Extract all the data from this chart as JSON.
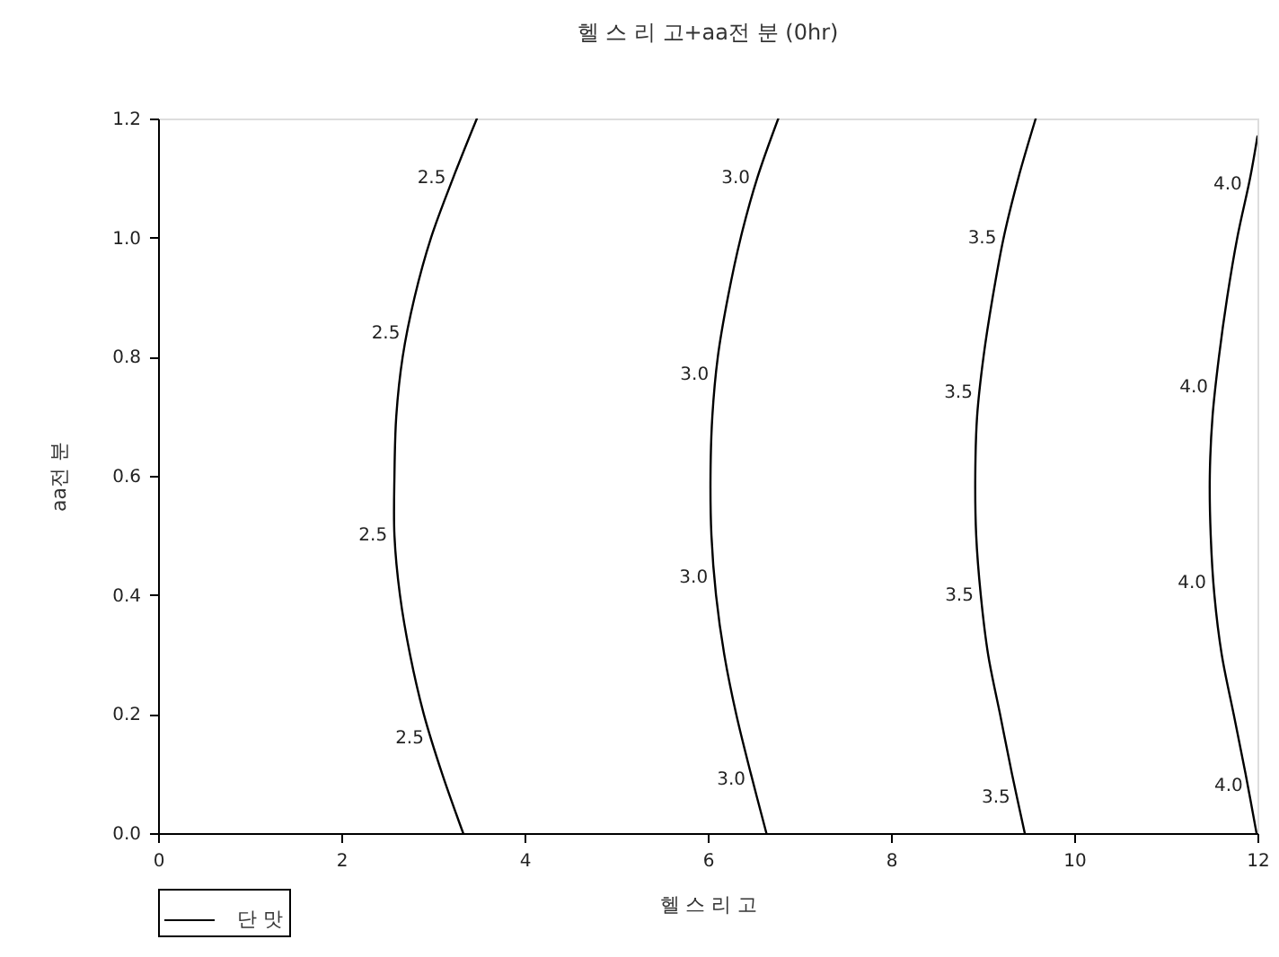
{
  "chart_data": {
    "type": "line",
    "title": "헬 스 리 고+aa전 분 (0hr)",
    "xlabel": "헬 스 리 고",
    "ylabel": "aa전 분",
    "xlim": [
      0,
      12
    ],
    "xticks": [
      0,
      2,
      4,
      6,
      8,
      10,
      12
    ],
    "ylim": [
      0,
      1.2
    ],
    "yticks": [
      {
        "value": 0,
        "label": "0.0"
      },
      0.2,
      0.4,
      0.6,
      0.8,
      {
        "value": 1,
        "label": "1.0"
      },
      1.2
    ],
    "series": [
      {
        "name": "단 맛",
        "color": "#000000",
        "x": [
          3.33,
          3.1,
          2.9,
          2.75,
          2.64,
          2.58,
          2.58,
          2.6,
          2.67,
          2.8,
          2.98,
          3.22,
          3.48
        ],
        "values": [
          0,
          0.1,
          0.2,
          0.3,
          0.4,
          0.5,
          0.6,
          0.7,
          0.8,
          0.9,
          1.0,
          1.1,
          1.2
        ]
      },
      {
        "color": "#000000",
        "x": [
          6.64,
          6.47,
          6.31,
          6.18,
          6.09,
          6.04,
          6.03,
          6.05,
          6.11,
          6.22,
          6.36,
          6.54,
          6.77
        ],
        "values": [
          0,
          0.1,
          0.2,
          0.3,
          0.4,
          0.5,
          0.6,
          0.7,
          0.8,
          0.9,
          1.0,
          1.1,
          1.2
        ]
      },
      {
        "color": "#000000",
        "x": [
          9.46,
          9.32,
          9.19,
          9.06,
          8.98,
          8.93,
          8.92,
          8.94,
          9.01,
          9.11,
          9.23,
          9.39,
          9.58
        ],
        "values": [
          0,
          0.1,
          0.2,
          0.3,
          0.4,
          0.5,
          0.6,
          0.7,
          0.8,
          0.9,
          1.0,
          1.1,
          1.2
        ]
      },
      {
        "color": "#000000",
        "x": [
          11.99,
          11.87,
          11.74,
          11.61,
          11.53,
          11.49,
          11.48,
          11.51,
          11.58,
          11.67,
          11.78,
          11.92,
          12.0
        ],
        "values": [
          0,
          0.1,
          0.2,
          0.3,
          0.4,
          0.5,
          0.6,
          0.7,
          0.8,
          0.9,
          1.0,
          1.1,
          1.17
        ]
      }
    ],
    "annotations": [
      {
        "text": "2.5",
        "x": 3.22,
        "y": 1.1
      },
      {
        "text": "2.5",
        "x": 2.72,
        "y": 0.84
      },
      {
        "text": "2.5",
        "x": 2.58,
        "y": 0.5
      },
      {
        "text": "2.5",
        "x": 2.98,
        "y": 0.16
      },
      {
        "text": "3.0",
        "x": 6.54,
        "y": 1.1
      },
      {
        "text": "3.0",
        "x": 6.09,
        "y": 0.77
      },
      {
        "text": "3.0",
        "x": 6.08,
        "y": 0.43
      },
      {
        "text": "3.0",
        "x": 6.49,
        "y": 0.09
      },
      {
        "text": "3.5",
        "x": 9.23,
        "y": 1.0
      },
      {
        "text": "3.5",
        "x": 8.97,
        "y": 0.74
      },
      {
        "text": "3.5",
        "x": 8.98,
        "y": 0.4
      },
      {
        "text": "3.5",
        "x": 9.38,
        "y": 0.06
      },
      {
        "text": "4.0",
        "x": 11.91,
        "y": 1.09
      },
      {
        "text": "4.0",
        "x": 11.54,
        "y": 0.75
      },
      {
        "text": "4.0",
        "x": 11.52,
        "y": 0.42
      },
      {
        "text": "4.0",
        "x": 11.92,
        "y": 0.08
      }
    ],
    "marker": "none",
    "line_style": "solid",
    "grid": false,
    "legend": "bottom left"
  }
}
